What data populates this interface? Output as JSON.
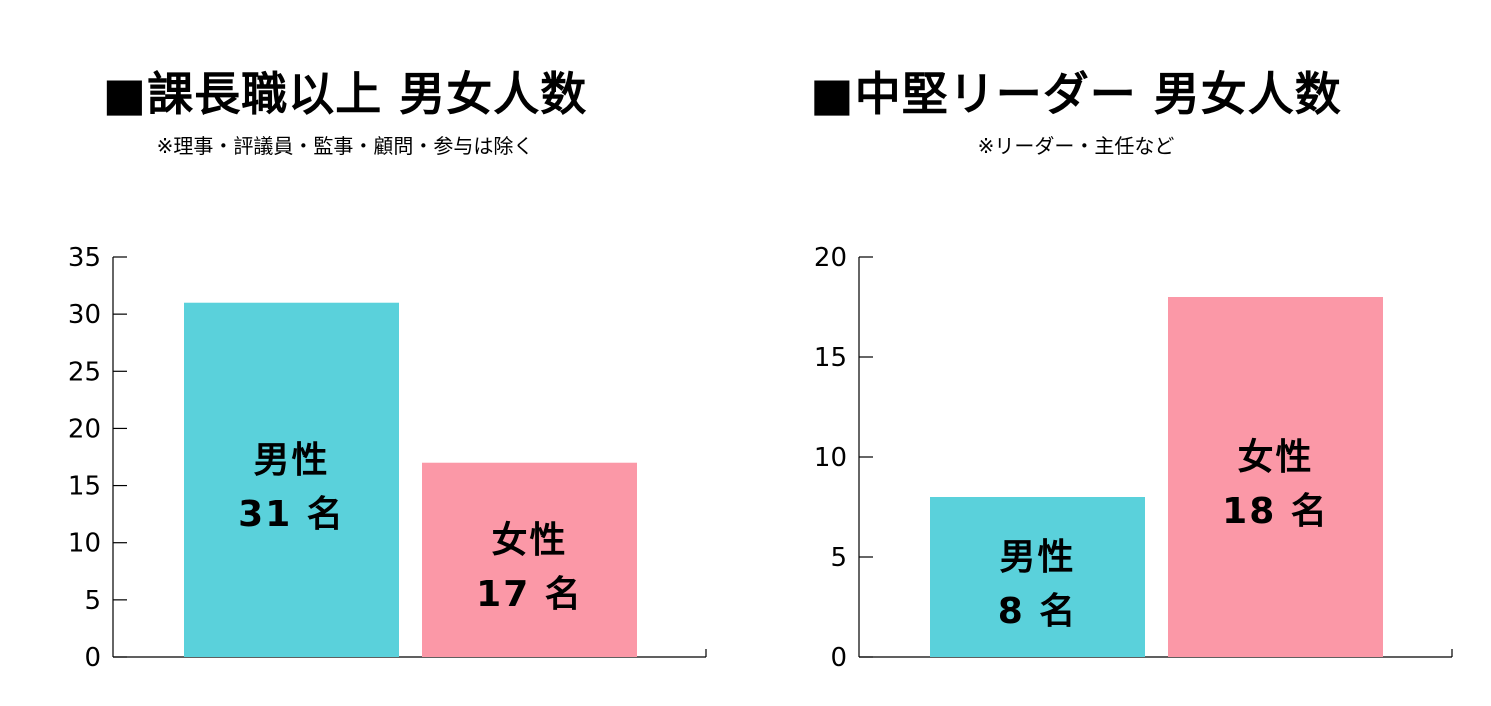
{
  "chart_data": [
    {
      "type": "bar",
      "title": "■課長職以上 男女人数",
      "subtitle": "※理事・評議員・監事・顧問・参与は除く",
      "categories": [
        "男性",
        "女性"
      ],
      "values": [
        31,
        17
      ],
      "value_labels": [
        "31 名",
        "17 名"
      ],
      "colors": [
        "#5ad1db",
        "#fb98a7"
      ],
      "ylim": [
        0,
        35
      ],
      "yticks": [
        0,
        5,
        10,
        15,
        20,
        25,
        30,
        35
      ],
      "xlabel": "",
      "ylabel": "",
      "grid": false,
      "legend": "none"
    },
    {
      "type": "bar",
      "title": "■中堅リーダー 男女人数",
      "subtitle": "※リーダー・主任など",
      "categories": [
        "男性",
        "女性"
      ],
      "values": [
        8,
        18
      ],
      "value_labels": [
        "8 名",
        "18 名"
      ],
      "colors": [
        "#5ad1db",
        "#fb98a7"
      ],
      "ylim": [
        0,
        20
      ],
      "yticks": [
        0,
        5,
        10,
        15,
        20
      ],
      "xlabel": "",
      "ylabel": "",
      "grid": false,
      "legend": "none"
    }
  ]
}
